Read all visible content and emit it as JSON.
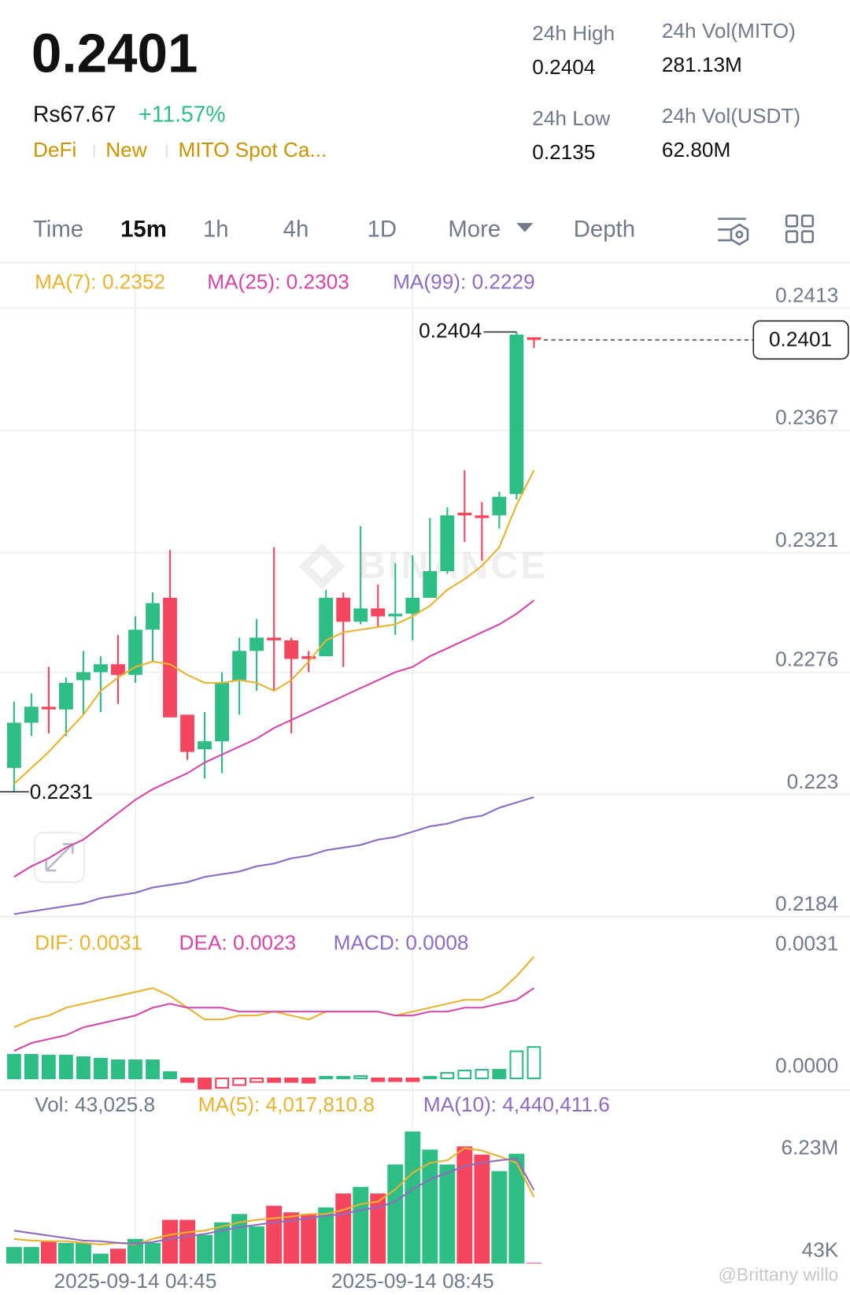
{
  "header": {
    "price": "0.2401",
    "fiat_price": "Rs67.67",
    "change": "+11.57%",
    "tags": [
      "DeFi",
      "New",
      "MITO Spot Ca..."
    ],
    "stats": [
      {
        "label": "24h High",
        "value": "0.2404"
      },
      {
        "label": "24h Vol(MITO)",
        "value": "281.13M"
      },
      {
        "label": "24h Low",
        "value": "0.2135"
      },
      {
        "label": "24h Vol(USDT)",
        "value": "62.80M"
      }
    ]
  },
  "tabs": [
    "Time",
    "15m",
    "1h",
    "4h",
    "1D",
    "More",
    "Depth"
  ],
  "active_tab": 1,
  "watermark": "BINANCE",
  "credit": "@Brittany willo",
  "chart_data": [
    {
      "type": "candlestick",
      "up_color": "#2ebd85",
      "down_color": "#f6465d",
      "grid": true,
      "ylim": [
        0.2184,
        0.2413
      ],
      "yticks": [
        0.2413,
        0.2367,
        0.2321,
        0.2276,
        0.223,
        0.2184
      ],
      "open": [
        0.224,
        0.2257,
        0.2263,
        0.2262,
        0.2273,
        0.2276,
        0.2279,
        0.2275,
        0.2292,
        0.2304,
        0.226,
        0.2247,
        0.225,
        0.2273,
        0.2284,
        0.2289,
        0.2288,
        0.2282,
        0.2282,
        0.2304,
        0.2295,
        0.23,
        0.2297,
        0.2298,
        0.2304,
        0.2314,
        0.2336,
        0.2335,
        0.2335,
        0.2343,
        0.2402
      ],
      "high": [
        0.2265,
        0.2268,
        0.2278,
        0.2274,
        0.2284,
        0.2282,
        0.229,
        0.2297,
        0.2306,
        0.2322,
        0.226,
        0.2261,
        0.2276,
        0.2289,
        0.2296,
        0.2323,
        0.2289,
        0.2284,
        0.2307,
        0.2306,
        0.2331,
        0.2309,
        0.2317,
        0.232,
        0.2334,
        0.2338,
        0.2352,
        0.234,
        0.2344,
        0.2404,
        0.2402
      ],
      "low": [
        0.2231,
        0.2252,
        0.2253,
        0.2252,
        0.226,
        0.2261,
        0.2264,
        0.2272,
        0.228,
        0.2259,
        0.2243,
        0.2236,
        0.2238,
        0.226,
        0.2269,
        0.2269,
        0.2253,
        0.2276,
        0.2282,
        0.2278,
        0.2294,
        0.2293,
        0.229,
        0.2288,
        0.2304,
        0.2313,
        0.2325,
        0.2318,
        0.233,
        0.2341,
        0.2398
      ],
      "close": [
        0.2257,
        0.2263,
        0.2262,
        0.2272,
        0.2276,
        0.2279,
        0.2275,
        0.2292,
        0.2302,
        0.2259,
        0.2246,
        0.225,
        0.2272,
        0.2284,
        0.2289,
        0.2288,
        0.2281,
        0.2281,
        0.2304,
        0.2295,
        0.23,
        0.2297,
        0.2298,
        0.2304,
        0.2314,
        0.2335,
        0.2335,
        0.2334,
        0.2342,
        0.2403,
        0.2401
      ],
      "series": [
        {
          "name": "MA(7): 0.2352",
          "color": "#e9b330",
          "values": [
            0.2234,
            0.224,
            0.2246,
            0.2253,
            0.226,
            0.2269,
            0.2274,
            0.2278,
            0.228,
            0.2279,
            0.2275,
            0.2272,
            0.2272,
            0.2273,
            0.2272,
            0.2269,
            0.2273,
            0.228,
            0.2288,
            0.2291,
            0.2292,
            0.2293,
            0.2294,
            0.2297,
            0.2301,
            0.2307,
            0.2311,
            0.2316,
            0.2323,
            0.2339,
            0.2352
          ]
        },
        {
          "name": "MA(25): 0.2303",
          "color": "#d546a9",
          "values": [
            0.2199,
            0.2203,
            0.2206,
            0.221,
            0.2213,
            0.2218,
            0.2223,
            0.2228,
            0.2232,
            0.2235,
            0.2238,
            0.2242,
            0.2245,
            0.2248,
            0.2251,
            0.2255,
            0.2258,
            0.2261,
            0.2264,
            0.2267,
            0.227,
            0.2273,
            0.2276,
            0.2278,
            0.2282,
            0.2285,
            0.2288,
            0.2291,
            0.2294,
            0.2298,
            0.2303
          ]
        },
        {
          "name": "MA(99): 0.2229",
          "color": "#8e6cc4",
          "values": [
            0.2185,
            0.2186,
            0.2187,
            0.2188,
            0.2189,
            0.2191,
            0.2192,
            0.2193,
            0.2195,
            0.2196,
            0.2197,
            0.2199,
            0.22,
            0.2201,
            0.2203,
            0.2204,
            0.2206,
            0.2207,
            0.2209,
            0.221,
            0.2211,
            0.2213,
            0.2214,
            0.2216,
            0.2218,
            0.2219,
            0.2221,
            0.2222,
            0.2225,
            0.2227,
            0.2229
          ]
        }
      ]
    },
    {
      "type": "macd",
      "grid": false,
      "ylim": [
        -0.0003,
        0.0038
      ],
      "yticks": [
        0.0031,
        {
          "value": 0,
          "label": "0.0000"
        }
      ],
      "series": [
        {
          "name": "DIF: 0.0031",
          "color": "#e9b330",
          "values": [
            0.0013,
            0.0015,
            0.0016,
            0.0018,
            0.0019,
            0.002,
            0.0021,
            0.0022,
            0.0023,
            0.0021,
            0.0018,
            0.0015,
            0.0015,
            0.0016,
            0.0016,
            0.0017,
            0.0016,
            0.0015,
            0.0017,
            0.0017,
            0.0017,
            0.0017,
            0.0016,
            0.0017,
            0.0018,
            0.0019,
            0.002,
            0.002,
            0.0022,
            0.0026,
            0.0031
          ]
        },
        {
          "name": "DEA: 0.0023",
          "color": "#d546a9",
          "values": [
            0.0007,
            0.0009,
            0.001,
            0.0011,
            0.0013,
            0.0014,
            0.0015,
            0.0016,
            0.0018,
            0.0019,
            0.0018,
            0.0018,
            0.0018,
            0.0017,
            0.0017,
            0.0017,
            0.0017,
            0.0017,
            0.0017,
            0.0017,
            0.0017,
            0.0017,
            0.0016,
            0.0016,
            0.0017,
            0.0017,
            0.0018,
            0.0018,
            0.0019,
            0.002,
            0.0023
          ]
        }
      ],
      "histogram": {
        "name": "MACD: 0.0008",
        "color": "#8e6cc4",
        "up_color": "#2ebd85",
        "down_color": "#f6465d",
        "values": [
          0.0006,
          0.0006,
          0.00058,
          0.00058,
          0.00054,
          0.0005,
          0.00046,
          0.00046,
          0.00046,
          0.00016,
          -9e-05,
          -0.00026,
          -0.00024,
          -0.00017,
          -9e-05,
          -9e-05,
          -9e-05,
          -0.00011,
          4e-05,
          4e-05,
          6e-05,
          -7e-05,
          -7e-05,
          -7e-05,
          4e-05,
          0.00014,
          0.0002,
          0.00022,
          0.00022,
          0.00069,
          0.0008
        ]
      }
    },
    {
      "type": "volume",
      "name": "Vol: 43,025.8",
      "color": "#707a8a",
      "grid": false,
      "ylim": [
        0,
        8470000
      ],
      "yticks": [
        {
          "value": 6230000,
          "label": "6.23M"
        },
        {
          "value": 43000,
          "label": "43K"
        }
      ],
      "categories": [
        null,
        null,
        null,
        null,
        null,
        null,
        null,
        "2025-09-14 04:45",
        null,
        null,
        null,
        null,
        null,
        null,
        null,
        null,
        null,
        null,
        null,
        null,
        null,
        null,
        null,
        "2025-09-14 08:45",
        null,
        null,
        null,
        null,
        null,
        null,
        null
      ],
      "values": [
        1000000,
        1000000,
        1350000,
        1250000,
        1250000,
        600000,
        900000,
        1490000,
        1250000,
        2640000,
        2640000,
        1740000,
        2490000,
        2990000,
        2240000,
        3490000,
        3090000,
        2990000,
        3390000,
        4230000,
        4630000,
        4230000,
        5980000,
        7970000,
        6880000,
        5980000,
        7070000,
        6580000,
        5580000,
        6630000,
        43025.8
      ],
      "series": [
        {
          "name": "MA(5): 4,017,810.8",
          "color": "#e9b330",
          "values": [
            1490000,
            1390000,
            1350000,
            1350000,
            1250000,
            1150000,
            1250000,
            1150000,
            1490000,
            1740000,
            1890000,
            1990000,
            2240000,
            2490000,
            2640000,
            2740000,
            2840000,
            2990000,
            2990000,
            3240000,
            3590000,
            3740000,
            4480000,
            5480000,
            6080000,
            6230000,
            6970000,
            6820000,
            6470000,
            6080000,
            4017810.8
          ]
        },
        {
          "name": "MA(10): 4,440,411.6",
          "color": "#8e6cc4",
          "values": [
            1990000,
            1840000,
            1690000,
            1540000,
            1390000,
            1350000,
            1250000,
            1200000,
            1300000,
            1490000,
            1640000,
            1790000,
            1990000,
            2190000,
            2340000,
            2490000,
            2590000,
            2740000,
            2890000,
            2990000,
            3240000,
            3390000,
            3740000,
            4480000,
            5080000,
            5480000,
            5880000,
            6080000,
            6230000,
            6330000,
            4440411.6
          ]
        }
      ]
    }
  ]
}
